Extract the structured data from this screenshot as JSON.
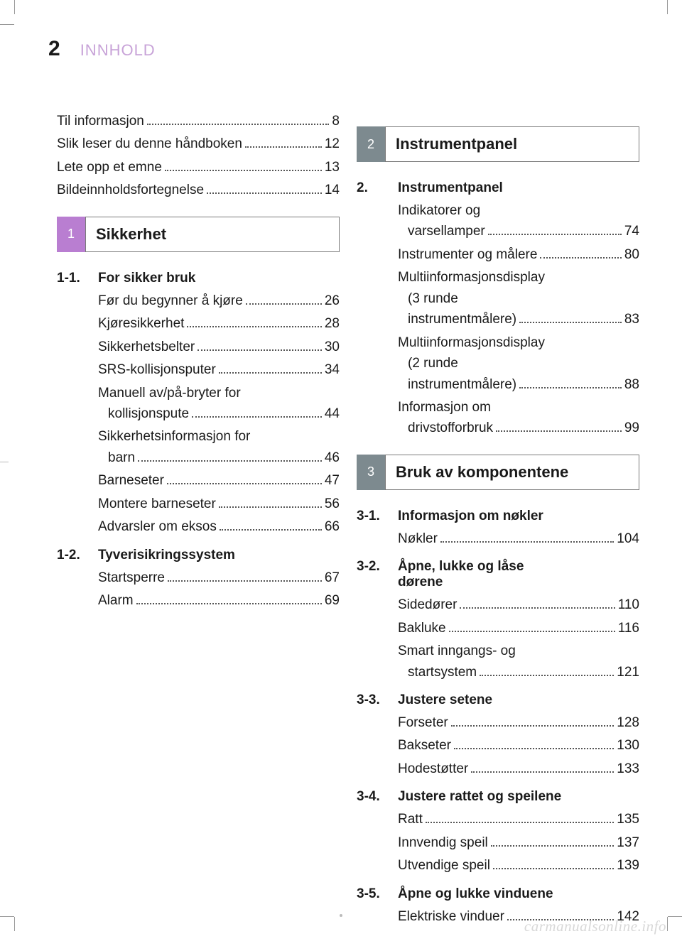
{
  "page_number": "2",
  "header_title": "INNHOLD",
  "watermark": "carmanualsonline.info",
  "colors": {
    "header_title": "#c8a3d8",
    "tab_purple": "#b97ed1",
    "tab_gray": "#7d8a8f",
    "text": "#1a1a1a",
    "border": "#7a7a7a",
    "watermark": "#d8d8d8"
  },
  "fonts": {
    "body_size_pt": 14,
    "pagenum_size_pt": 22,
    "section_title_size_pt": 16
  },
  "intro": [
    {
      "text": "Til informasjon",
      "page": "8"
    },
    {
      "text": "Slik leser du denne håndboken",
      "page": "12"
    },
    {
      "text": "Lete opp et emne",
      "page": "13"
    },
    {
      "text": "Bildeinnholdsfortegnelse",
      "page": "14"
    }
  ],
  "sections": [
    {
      "tab": "1",
      "tab_color": "purple",
      "title": "Sikkerhet",
      "subs": [
        {
          "num": "1-1.",
          "title": "For sikker bruk",
          "items": [
            {
              "lines": [
                "Før du begynner å kjøre"
              ],
              "page": "26"
            },
            {
              "lines": [
                "Kjøresikkerhet"
              ],
              "page": "28"
            },
            {
              "lines": [
                "Sikkerhetsbelter"
              ],
              "page": "30"
            },
            {
              "lines": [
                "SRS-kollisjonsputer"
              ],
              "page": "34"
            },
            {
              "lines": [
                "Manuell av/på-bryter for",
                "kollisjonspute"
              ],
              "page": "44"
            },
            {
              "lines": [
                "Sikkerhetsinformasjon for",
                "barn"
              ],
              "page": "46"
            },
            {
              "lines": [
                "Barneseter"
              ],
              "page": "47"
            },
            {
              "lines": [
                "Montere barneseter"
              ],
              "page": "56"
            },
            {
              "lines": [
                "Advarsler om eksos"
              ],
              "page": "66"
            }
          ]
        },
        {
          "num": "1-2.",
          "title": "Tyverisikringssystem",
          "items": [
            {
              "lines": [
                "Startsperre"
              ],
              "page": "67"
            },
            {
              "lines": [
                "Alarm"
              ],
              "page": "69"
            }
          ]
        }
      ]
    },
    {
      "tab": "2",
      "tab_color": "gray",
      "title": "Instrumentpanel",
      "subs": [
        {
          "num": "2.",
          "title": "Instrumentpanel",
          "items": [
            {
              "lines": [
                "Indikatorer og",
                "varsellamper"
              ],
              "page": "74"
            },
            {
              "lines": [
                "Instrumenter og målere"
              ],
              "page": "80"
            },
            {
              "lines": [
                "Multiinformasjonsdisplay",
                "(3 runde",
                "instrumentmålere)"
              ],
              "page": "83"
            },
            {
              "lines": [
                "Multiinformasjonsdisplay",
                "(2 runde",
                "instrumentmålere)"
              ],
              "page": "88"
            },
            {
              "lines": [
                "Informasjon om",
                "drivstofforbruk"
              ],
              "page": "99"
            }
          ]
        }
      ]
    },
    {
      "tab": "3",
      "tab_color": "gray",
      "title": "Bruk av komponentene",
      "subs": [
        {
          "num": "3-1.",
          "title": "Informasjon om nøkler",
          "items": [
            {
              "lines": [
                "Nøkler"
              ],
              "page": "104"
            }
          ]
        },
        {
          "num": "3-2.",
          "title": "Åpne, lukke og låse dørene",
          "title_lines": [
            "Åpne, lukke og låse",
            "dørene"
          ],
          "items": [
            {
              "lines": [
                "Sidedører"
              ],
              "page": "110"
            },
            {
              "lines": [
                "Bakluke"
              ],
              "page": "116"
            },
            {
              "lines": [
                "Smart inngangs- og",
                "startsystem"
              ],
              "page": "121"
            }
          ]
        },
        {
          "num": "3-3.",
          "title": "Justere setene",
          "items": [
            {
              "lines": [
                "Forseter"
              ],
              "page": "128"
            },
            {
              "lines": [
                "Bakseter"
              ],
              "page": "130"
            },
            {
              "lines": [
                "Hodestøtter"
              ],
              "page": "133"
            }
          ]
        },
        {
          "num": "3-4.",
          "title": "Justere rattet og speilene",
          "items": [
            {
              "lines": [
                "Ratt"
              ],
              "page": "135"
            },
            {
              "lines": [
                "Innvendig speil"
              ],
              "page": "137"
            },
            {
              "lines": [
                "Utvendige speil"
              ],
              "page": "139"
            }
          ]
        },
        {
          "num": "3-5.",
          "title": "Åpne og lukke vinduene",
          "items": [
            {
              "lines": [
                "Elektriske vinduer"
              ],
              "page": "142"
            }
          ]
        }
      ]
    }
  ]
}
